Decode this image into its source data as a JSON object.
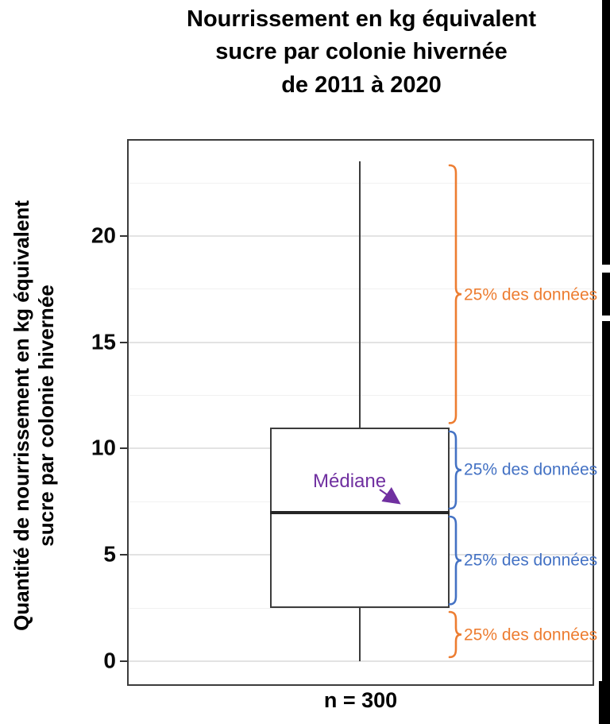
{
  "chart_data": {
    "type": "boxplot",
    "title": "Nourrissement en kg équivalent sucre par colonie hivernée de 2011 à 2020",
    "title_lines": [
      "Nourrissement en kg équivalent",
      "sucre par colonie hivernée",
      "de 2011 à 2020"
    ],
    "ylabel": "Quantité de nourrissement en kg équivalent sucre par colonie hivernée",
    "ylabel_lines": [
      "Quantité de nourrissement en kg équivalent",
      "sucre par colonie hivernée"
    ],
    "xlabel": "n = 300",
    "sample_size": 300,
    "ylim": [
      -1.16,
      24.56
    ],
    "y_major_ticks": [
      0,
      5,
      10,
      15,
      20
    ],
    "y_minor_ticks": [
      2.5,
      7.5,
      12.5,
      17.5,
      22.5
    ],
    "grid": "horizontal major + minor, light gray, white panel",
    "legend": "none",
    "box": {
      "min": 0,
      "q1": 2.5,
      "median": 7,
      "q3": 11,
      "max": 23.5
    },
    "annotations": {
      "median_label": {
        "text": "Médiane",
        "color": "#7030A0"
      },
      "quartile_brackets": [
        {
          "text": "25% des données",
          "from": 23.5,
          "to": 11,
          "color": "#ED7D31"
        },
        {
          "text": "25% des données",
          "from": 11,
          "to": 7,
          "color": "#4472C4"
        },
        {
          "text": "25% des données",
          "from": 7,
          "to": 2.5,
          "color": "#4472C4"
        },
        {
          "text": "25% des données",
          "from": 2.5,
          "to": 0,
          "color": "#ED7D31"
        }
      ]
    }
  },
  "colors": {
    "bracket_orange": "#ED7D31",
    "bracket_blue": "#4472C4",
    "median_purple": "#7030A0",
    "box_stroke": "#3C3C3C",
    "grid_major": "#E3E3E3",
    "grid_minor": "#F1F1F1",
    "edge_artifact": "#000000"
  }
}
